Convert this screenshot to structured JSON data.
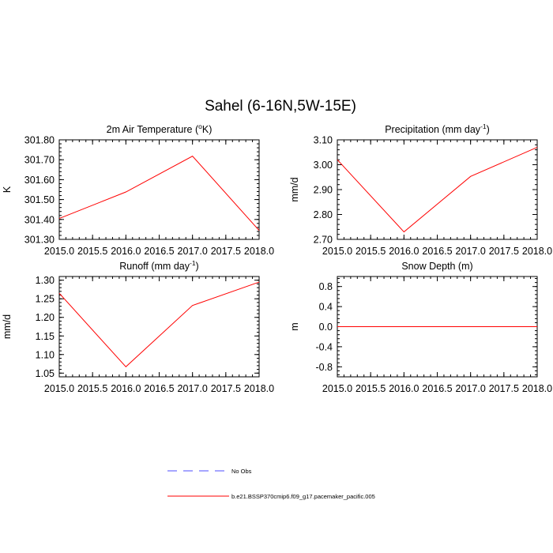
{
  "figure": {
    "title": "Sahel (6-16N,5W-15E)"
  },
  "chart_data": [
    {
      "type": "line",
      "title": "2m Air Temperature (°K)",
      "title_parts": {
        "main": "2m Air Temperature (",
        "sup": "o",
        "end": "K)"
      },
      "ylabel": "K",
      "x": [
        2015,
        2016,
        2017,
        2018
      ],
      "xlim": [
        2015,
        2018
      ],
      "xticks": [
        "2015.0",
        "2015.5",
        "2016.0",
        "2016.5",
        "2017.0",
        "2017.5",
        "2018.0"
      ],
      "ylim": [
        301.3,
        301.8
      ],
      "yticks": [
        "301.30",
        "301.40",
        "301.50",
        "301.60",
        "301.70",
        "301.80"
      ],
      "ytick_values": [
        301.3,
        301.4,
        301.5,
        301.6,
        301.7,
        301.8
      ],
      "series": [
        {
          "name": "b.e21.BSSP370cmip6.f09_g17.pacemaker_pacific.005",
          "values": [
            301.405,
            301.538,
            301.718,
            301.345
          ],
          "color": "#ff0000"
        }
      ]
    },
    {
      "type": "line",
      "title": "Precipitation (mm day-1)",
      "title_parts": {
        "main": "Precipitation (mm day",
        "sup": "-1",
        "end": ")"
      },
      "ylabel": "mm/d",
      "x": [
        2015,
        2016,
        2017,
        2018
      ],
      "xlim": [
        2015,
        2018
      ],
      "xticks": [
        "2015.0",
        "2015.5",
        "2016.0",
        "2016.5",
        "2017.0",
        "2017.5",
        "2018.0"
      ],
      "ylim": [
        2.7,
        3.1
      ],
      "yticks": [
        "2.70",
        "2.80",
        "2.90",
        "3.00",
        "3.10"
      ],
      "ytick_values": [
        2.7,
        2.8,
        2.9,
        3.0,
        3.1
      ],
      "series": [
        {
          "name": "b.e21.BSSP370cmip6.f09_g17.pacemaker_pacific.005",
          "values": [
            3.02,
            2.73,
            2.953,
            3.07
          ],
          "color": "#ff0000"
        }
      ]
    },
    {
      "type": "line",
      "title": "Runoff (mm day-1)",
      "title_parts": {
        "main": "Runoff (mm day",
        "sup": "-1",
        "end": ")"
      },
      "ylabel": "mm/d",
      "x": [
        2015,
        2016,
        2017,
        2018
      ],
      "xlim": [
        2015,
        2018
      ],
      "xticks": [
        "2015.0",
        "2015.5",
        "2016.0",
        "2016.5",
        "2017.0",
        "2017.5",
        "2018.0"
      ],
      "ylim": [
        1.04,
        1.31
      ],
      "yticks": [
        "1.05",
        "1.10",
        "1.15",
        "1.20",
        "1.25",
        "1.30"
      ],
      "ytick_values": [
        1.05,
        1.1,
        1.15,
        1.2,
        1.25,
        1.3
      ],
      "series": [
        {
          "name": "b.e21.BSSP370cmip6.f09_g17.pacemaker_pacific.005",
          "values": [
            1.265,
            1.067,
            1.232,
            1.295
          ],
          "color": "#ff0000"
        }
      ]
    },
    {
      "type": "line",
      "title": "Snow Depth (m)",
      "title_parts": {
        "main": "Snow Depth (m)",
        "sup": "",
        "end": ""
      },
      "ylabel": "m",
      "x": [
        2015,
        2016,
        2017,
        2018
      ],
      "xlim": [
        2015,
        2018
      ],
      "xticks": [
        "2015.0",
        "2015.5",
        "2016.0",
        "2016.5",
        "2017.0",
        "2017.5",
        "2018.0"
      ],
      "ylim": [
        -1.0,
        1.0
      ],
      "yticks": [
        "-0.8",
        "-0.4",
        "0.0",
        "0.4",
        "0.8"
      ],
      "ytick_values": [
        -0.8,
        -0.4,
        0.0,
        0.4,
        0.8
      ],
      "series": [
        {
          "name": "b.e21.BSSP370cmip6.f09_g17.pacemaker_pacific.005",
          "values": [
            0,
            0,
            0,
            0
          ],
          "color": "#ff0000"
        }
      ]
    }
  ],
  "legend": [
    {
      "label": "No Obs",
      "color": "#4d4dff",
      "style": "dashed"
    },
    {
      "label": "b.e21.BSSP370cmip6.f09_g17.pacemaker_pacific.005",
      "color": "#ff0000",
      "style": "solid"
    }
  ]
}
